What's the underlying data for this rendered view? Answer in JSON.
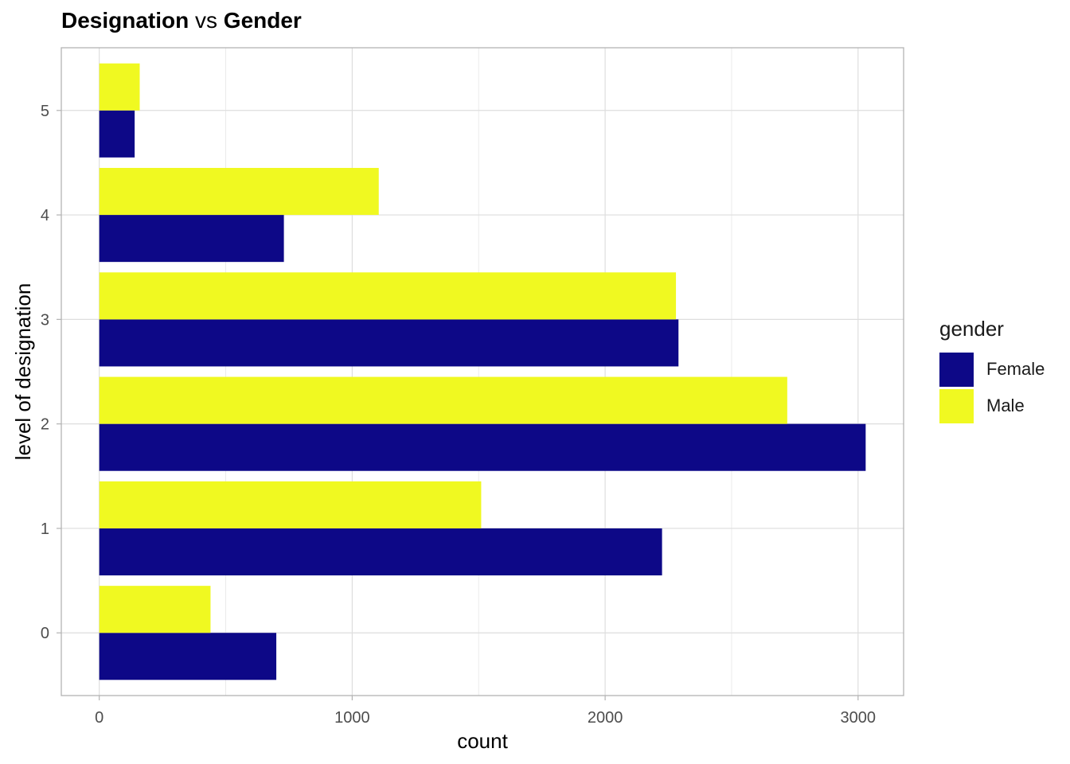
{
  "title": {
    "part1": "Designation",
    "part2": "vs",
    "part3": "Gender"
  },
  "legend": {
    "title": "gender",
    "items": [
      {
        "label": "Female",
        "color": "#0D0887"
      },
      {
        "label": "Male",
        "color": "#F0F921"
      }
    ]
  },
  "chart_data": {
    "type": "bar",
    "orientation": "horizontal",
    "categories": [
      "0",
      "1",
      "2",
      "3",
      "4",
      "5"
    ],
    "series": [
      {
        "name": "Female",
        "color": "#0D0887",
        "values": [
          700,
          2225,
          3030,
          2290,
          730,
          140
        ]
      },
      {
        "name": "Male",
        "color": "#F0F921",
        "values": [
          440,
          1510,
          2720,
          2280,
          1105,
          160
        ]
      }
    ],
    "xlabel": "count",
    "ylabel": "level of designation",
    "xlim": [
      -150,
      3180
    ],
    "x_ticks": [
      "0",
      "1000",
      "2000",
      "3000"
    ],
    "grid": true
  }
}
